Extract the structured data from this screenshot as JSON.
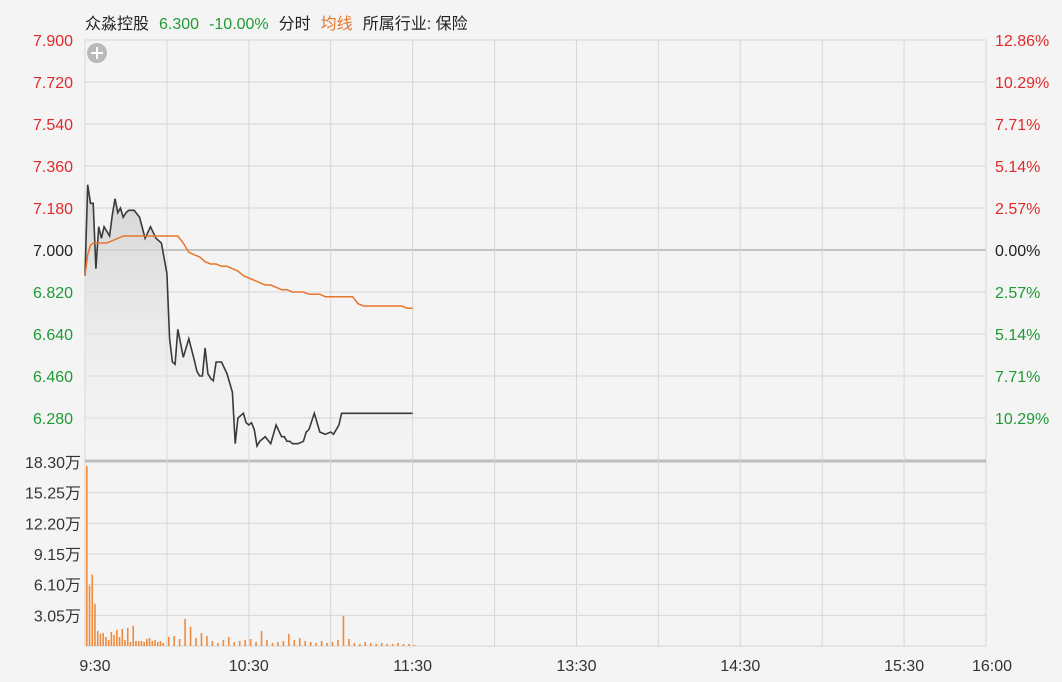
{
  "header": {
    "name": "众淼控股",
    "price": "6.300",
    "change_pct": "-10.00%",
    "mode": "分时",
    "avg_label": "均线",
    "industry": "所属行业: 保险"
  },
  "colors": {
    "up": "#e02a2a",
    "down": "#1e9a35",
    "flat": "#222222",
    "price_line": "#3a3a3a",
    "avg_line": "#e8752b",
    "volume": "#f08a3c",
    "grid": "#d6d6d6"
  },
  "chart_data": [
    {
      "type": "line",
      "panel": "price",
      "y_labels_left": [
        "7.900",
        "7.720",
        "7.540",
        "7.360",
        "7.180",
        "7.000",
        "6.820",
        "6.640",
        "6.460",
        "6.280"
      ],
      "y_labels_right": [
        "12.86%",
        "10.29%",
        "7.71%",
        "5.14%",
        "2.57%",
        "0.00%",
        "2.57%",
        "5.14%",
        "7.71%",
        "10.29%"
      ],
      "ref_price": 7.0,
      "ylim": [
        6.1,
        7.9
      ],
      "x_ticks": [
        "9:30",
        "10:30",
        "11:30",
        "13:30",
        "14:30",
        "15:30",
        "16:00"
      ],
      "series": [
        {
          "x": [
            0,
            1,
            2,
            3,
            4,
            5,
            6,
            7,
            8,
            9,
            10,
            11,
            12,
            13,
            14,
            15,
            16,
            18,
            20,
            22,
            24,
            26,
            28,
            30,
            31,
            32,
            33,
            34,
            36,
            38,
            40,
            41,
            42,
            43,
            44,
            45,
            46,
            47,
            48,
            50,
            52,
            54,
            55,
            56,
            57,
            58,
            59,
            60,
            61,
            62,
            63,
            64,
            66,
            68,
            70,
            72,
            73,
            74,
            75,
            76,
            78,
            80,
            81,
            82,
            84,
            86,
            88,
            90,
            91,
            92,
            93,
            94,
            96,
            98,
            100,
            102,
            104,
            105,
            106,
            107,
            108,
            110,
            112,
            114,
            116,
            118,
            120
          ],
          "values": [
            6.89,
            7.28,
            7.2,
            7.2,
            6.92,
            7.1,
            7.05,
            7.1,
            7.08,
            7.06,
            7.15,
            7.22,
            7.16,
            7.18,
            7.14,
            7.16,
            7.17,
            7.17,
            7.14,
            7.05,
            7.1,
            7.05,
            7.03,
            6.9,
            6.62,
            6.52,
            6.51,
            6.66,
            6.54,
            6.62,
            6.53,
            6.48,
            6.46,
            6.46,
            6.58,
            6.47,
            6.45,
            6.44,
            6.52,
            6.52,
            6.47,
            6.39,
            6.17,
            6.28,
            6.29,
            6.3,
            6.26,
            6.25,
            6.26,
            6.23,
            6.16,
            6.18,
            6.2,
            6.17,
            6.25,
            6.2,
            6.2,
            6.18,
            6.18,
            6.17,
            6.17,
            6.18,
            6.22,
            6.23,
            6.3,
            6.22,
            6.21,
            6.22,
            6.21,
            6.23,
            6.25,
            6.3,
            6.3,
            6.3,
            6.3,
            6.3,
            6.3,
            6.3,
            6.3,
            6.3,
            6.3,
            6.3,
            6.3,
            6.3,
            6.3,
            6.3,
            6.3
          ]
        },
        {
          "x": [
            0,
            1,
            2,
            3,
            4,
            6,
            8,
            10,
            12,
            14,
            16,
            18,
            20,
            22,
            24,
            26,
            28,
            30,
            32,
            34,
            36,
            38,
            40,
            42,
            44,
            46,
            48,
            50,
            52,
            54,
            56,
            58,
            60,
            62,
            64,
            66,
            68,
            70,
            72,
            74,
            76,
            78,
            80,
            82,
            84,
            86,
            88,
            90,
            92,
            94,
            96,
            98,
            100,
            102,
            104,
            106,
            108,
            110,
            112,
            114,
            116,
            118,
            120
          ],
          "values": [
            6.89,
            6.98,
            7.02,
            7.03,
            7.03,
            7.03,
            7.03,
            7.04,
            7.05,
            7.06,
            7.06,
            7.06,
            7.06,
            7.06,
            7.06,
            7.06,
            7.06,
            7.06,
            7.06,
            7.06,
            7.03,
            6.99,
            6.98,
            6.97,
            6.95,
            6.94,
            6.94,
            6.93,
            6.93,
            6.92,
            6.91,
            6.89,
            6.88,
            6.87,
            6.86,
            6.85,
            6.85,
            6.84,
            6.83,
            6.83,
            6.82,
            6.82,
            6.82,
            6.81,
            6.81,
            6.81,
            6.8,
            6.8,
            6.8,
            6.8,
            6.8,
            6.8,
            6.77,
            6.76,
            6.76,
            6.76,
            6.76,
            6.76,
            6.76,
            6.76,
            6.76,
            6.75,
            6.75
          ]
        }
      ]
    },
    {
      "type": "bar",
      "panel": "volume",
      "y_labels": [
        "18.30万",
        "15.25万",
        "12.20万",
        "9.15万",
        "6.10万",
        "3.05万"
      ],
      "ylim": [
        0,
        18.3
      ],
      "unit": "万",
      "x": [
        0,
        1,
        2,
        3,
        4,
        5,
        6,
        7,
        8,
        9,
        10,
        11,
        12,
        13,
        14,
        15,
        16,
        17,
        18,
        19,
        20,
        21,
        22,
        23,
        24,
        25,
        26,
        27,
        28,
        30,
        32,
        34,
        36,
        38,
        40,
        42,
        44,
        46,
        48,
        50,
        52,
        54,
        56,
        58,
        60,
        62,
        64,
        66,
        68,
        70,
        72,
        74,
        76,
        78,
        80,
        82,
        84,
        86,
        88,
        90,
        92,
        94,
        96,
        98,
        100,
        102,
        104,
        106,
        108,
        110,
        112,
        114,
        116,
        118,
        120
      ],
      "values": [
        17.9,
        6.0,
        7.1,
        4.2,
        1.5,
        1.2,
        1.3,
        0.9,
        0.6,
        1.4,
        1.1,
        1.6,
        0.9,
        1.7,
        0.6,
        1.8,
        0.4,
        2.0,
        0.5,
        0.5,
        0.5,
        0.4,
        0.7,
        0.8,
        0.5,
        0.6,
        0.4,
        0.5,
        0.3,
        0.9,
        1.0,
        0.7,
        2.7,
        1.9,
        0.8,
        1.3,
        1.0,
        0.5,
        0.3,
        0.6,
        0.9,
        0.4,
        0.5,
        0.6,
        0.7,
        0.4,
        1.5,
        0.6,
        0.3,
        0.4,
        0.5,
        1.2,
        0.6,
        0.8,
        0.5,
        0.4,
        0.3,
        0.5,
        0.3,
        0.4,
        0.6,
        3.0,
        0.7,
        0.3,
        0.2,
        0.4,
        0.3,
        0.2,
        0.3,
        0.2,
        0.2,
        0.3,
        0.2,
        0.2,
        0.1
      ]
    }
  ]
}
